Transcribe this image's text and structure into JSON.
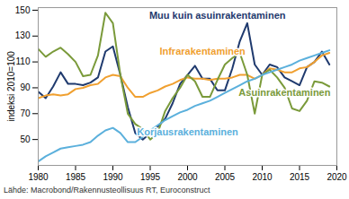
{
  "chart_data": {
    "type": "line",
    "y_label": "indeksi 2010=100",
    "caption": "Lähde: Macrobond/Rakennusteollisuus RT, Euroconstruct",
    "x": [
      1980,
      1981,
      1982,
      1983,
      1984,
      1985,
      1986,
      1987,
      1988,
      1989,
      1990,
      1991,
      1992,
      1993,
      1994,
      1995,
      1996,
      1997,
      1998,
      1999,
      2000,
      2001,
      2002,
      2003,
      2004,
      2005,
      2006,
      2007,
      2008,
      2009,
      2010,
      2011,
      2012,
      2013,
      2014,
      2015,
      2016,
      2017,
      2018,
      2019
    ],
    "xlim": [
      1980,
      2020
    ],
    "xticks": [
      1980,
      1985,
      1990,
      1995,
      2000,
      2005,
      2010,
      2015,
      2020
    ],
    "ylim": [
      30,
      152
    ],
    "yticks": [
      50,
      70,
      90,
      110,
      130,
      150
    ],
    "grid": false,
    "series": [
      {
        "name": "Muu kuin asuinrakentaminen",
        "color": "#1f3a6e",
        "values": [
          87,
          82,
          91,
          102,
          93,
          93,
          92,
          94,
          98,
          118,
          122,
          100,
          75,
          55,
          50,
          55,
          60,
          66,
          78,
          93,
          100,
          107,
          97,
          97,
          88,
          88,
          105,
          126,
          140,
          108,
          100,
          108,
          106,
          98,
          95,
          92,
          106,
          110,
          118,
          108
        ]
      },
      {
        "name": "Infrarakentaminen",
        "color": "#f0a030",
        "values": [
          82,
          84,
          85,
          84,
          85,
          89,
          90,
          92,
          93,
          98,
          100,
          99,
          90,
          83,
          83,
          86,
          88,
          91,
          93,
          96,
          98,
          97,
          97,
          96,
          97,
          97,
          98,
          100,
          100,
          97,
          100,
          105,
          104,
          102,
          102,
          105,
          106,
          110,
          115,
          117
        ]
      },
      {
        "name": "Asuinrakentaminen",
        "color": "#7a9a3a",
        "values": [
          120,
          114,
          118,
          121,
          116,
          110,
          99,
          100,
          115,
          148,
          140,
          100,
          70,
          62,
          58,
          50,
          55,
          72,
          82,
          90,
          100,
          95,
          83,
          83,
          96,
          108,
          113,
          117,
          100,
          70,
          100,
          104,
          98,
          90,
          74,
          72,
          80,
          95,
          94,
          91
        ]
      },
      {
        "name": "Korjausrakentaminen",
        "color": "#5bb0dc",
        "values": [
          33,
          37,
          40,
          43,
          44,
          45,
          46,
          48,
          53,
          57,
          59,
          55,
          48,
          48,
          52,
          57,
          61,
          65,
          68,
          71,
          73,
          76,
          78,
          80,
          83,
          86,
          89,
          92,
          95,
          97,
          100,
          102,
          104,
          106,
          108,
          111,
          113,
          115,
          117,
          119
        ]
      }
    ]
  }
}
